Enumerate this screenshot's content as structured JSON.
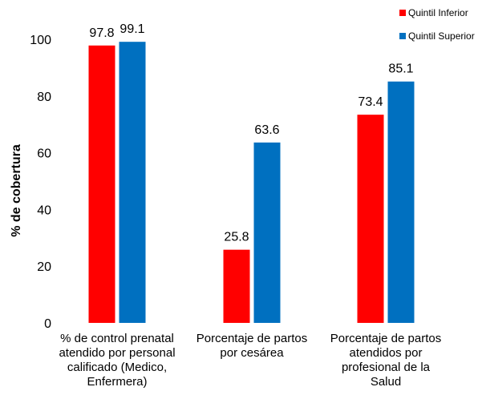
{
  "chart_data": {
    "type": "bar",
    "categories": [
      [
        "% de control prenatal",
        "atendido por personal",
        "calificado (Medico,",
        "Enfermera)"
      ],
      [
        "Porcentaje de partos",
        "por cesárea"
      ],
      [
        "Porcentaje de partos",
        "atendidos por",
        "profesional de la",
        "Salud"
      ]
    ],
    "series": [
      {
        "name": "Quintil Inferior",
        "color": "#ff0000",
        "values": [
          97.8,
          25.8,
          73.4
        ],
        "labels": [
          "97.8",
          "25.8",
          "73.4"
        ]
      },
      {
        "name": "Quintil Superior",
        "color": "#0070c0",
        "values": [
          99.1,
          63.6,
          85.1
        ],
        "labels": [
          "99.1",
          "63.6",
          "85.1"
        ]
      }
    ],
    "ylabel": "% de cobertura",
    "ylim": [
      0,
      100
    ],
    "yticks": [
      "0",
      "20",
      "40",
      "60",
      "80",
      "100"
    ],
    "grid": false,
    "legend_position": "top-right"
  }
}
